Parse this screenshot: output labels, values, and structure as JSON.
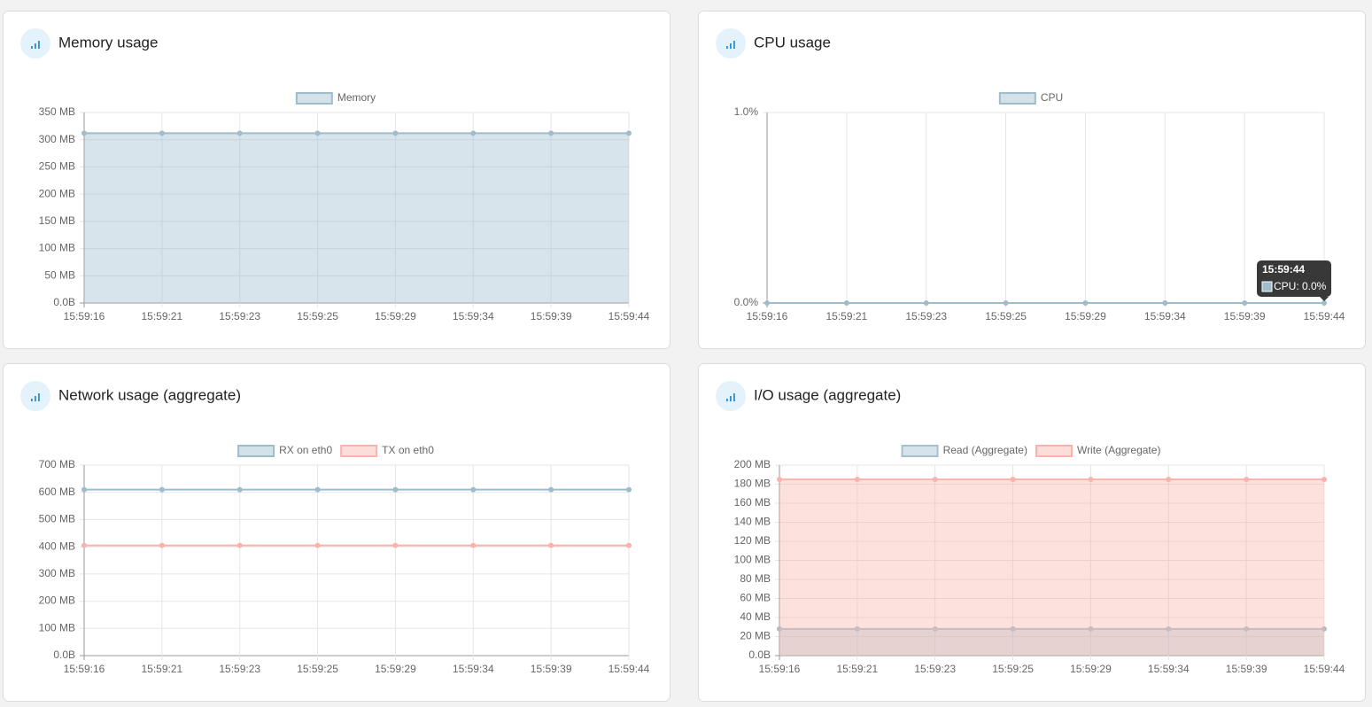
{
  "chart_data": [
    {
      "type": "area",
      "title": "Memory usage",
      "categories": [
        "15:59:16",
        "15:59:21",
        "15:59:23",
        "15:59:25",
        "15:59:29",
        "15:59:34",
        "15:59:39",
        "15:59:44"
      ],
      "series": [
        {
          "name": "Memory",
          "color": "#9dbccc",
          "values": [
            312,
            312,
            312,
            312,
            312,
            312,
            312,
            312
          ]
        }
      ],
      "ylim": [
        0,
        350
      ],
      "yticks": [
        {
          "value": 0,
          "label": "0.0B"
        },
        {
          "value": 50,
          "label": "50 MB"
        },
        {
          "value": 100,
          "label": "100 MB"
        },
        {
          "value": 150,
          "label": "150 MB"
        },
        {
          "value": 200,
          "label": "200 MB"
        },
        {
          "value": 250,
          "label": "250 MB"
        },
        {
          "value": 300,
          "label": "300 MB"
        },
        {
          "value": 350,
          "label": "350 MB"
        }
      ],
      "grid": true,
      "legend": "top"
    },
    {
      "type": "area",
      "title": "CPU usage",
      "categories": [
        "15:59:16",
        "15:59:21",
        "15:59:23",
        "15:59:25",
        "15:59:29",
        "15:59:34",
        "15:59:39",
        "15:59:44"
      ],
      "series": [
        {
          "name": "CPU",
          "color": "#9dbccc",
          "values": [
            0,
            0,
            0,
            0,
            0,
            0,
            0,
            0
          ]
        }
      ],
      "ylim": [
        0,
        1
      ],
      "yticks": [
        {
          "value": 0,
          "label": "0.0%"
        },
        {
          "value": 1,
          "label": "1.0%"
        }
      ],
      "grid": true,
      "legend": "top",
      "tooltip": {
        "title": "15:59:44",
        "label": "CPU: 0.0%"
      }
    },
    {
      "type": "line",
      "title": "Network usage (aggregate)",
      "categories": [
        "15:59:16",
        "15:59:21",
        "15:59:23",
        "15:59:25",
        "15:59:29",
        "15:59:34",
        "15:59:39",
        "15:59:44"
      ],
      "series": [
        {
          "name": "RX on eth0",
          "color": "#9dbccc",
          "values": [
            610,
            610,
            610,
            610,
            610,
            610,
            610,
            610
          ]
        },
        {
          "name": "TX on eth0",
          "color": "#f9b3ab",
          "values": [
            405,
            405,
            405,
            405,
            405,
            405,
            405,
            405
          ]
        }
      ],
      "ylim": [
        0,
        700
      ],
      "yticks": [
        {
          "value": 0,
          "label": "0.0B"
        },
        {
          "value": 100,
          "label": "100 MB"
        },
        {
          "value": 200,
          "label": "200 MB"
        },
        {
          "value": 300,
          "label": "300 MB"
        },
        {
          "value": 400,
          "label": "400 MB"
        },
        {
          "value": 500,
          "label": "500 MB"
        },
        {
          "value": 600,
          "label": "600 MB"
        },
        {
          "value": 700,
          "label": "700 MB"
        }
      ],
      "grid": true,
      "legend": "top"
    },
    {
      "type": "area",
      "title": "I/O usage (aggregate)",
      "categories": [
        "15:59:16",
        "15:59:21",
        "15:59:23",
        "15:59:25",
        "15:59:29",
        "15:59:34",
        "15:59:39",
        "15:59:44"
      ],
      "series": [
        {
          "name": "Read (Aggregate)",
          "color": "#a3c1d1",
          "values": [
            28,
            28,
            28,
            28,
            28,
            28,
            28,
            28
          ]
        },
        {
          "name": "Write (Aggregate)",
          "color": "#f9b3ab",
          "values": [
            185,
            185,
            185,
            185,
            185,
            185,
            185,
            185
          ]
        }
      ],
      "ylim": [
        0,
        200
      ],
      "yticks": [
        {
          "value": 0,
          "label": "0.0B"
        },
        {
          "value": 20,
          "label": "20 MB"
        },
        {
          "value": 40,
          "label": "40 MB"
        },
        {
          "value": 60,
          "label": "60 MB"
        },
        {
          "value": 80,
          "label": "80 MB"
        },
        {
          "value": 100,
          "label": "100 MB"
        },
        {
          "value": 120,
          "label": "120 MB"
        },
        {
          "value": 140,
          "label": "140 MB"
        },
        {
          "value": 160,
          "label": "160 MB"
        },
        {
          "value": 180,
          "label": "180 MB"
        },
        {
          "value": 200,
          "label": "200 MB"
        }
      ],
      "grid": true,
      "legend": "top"
    }
  ]
}
